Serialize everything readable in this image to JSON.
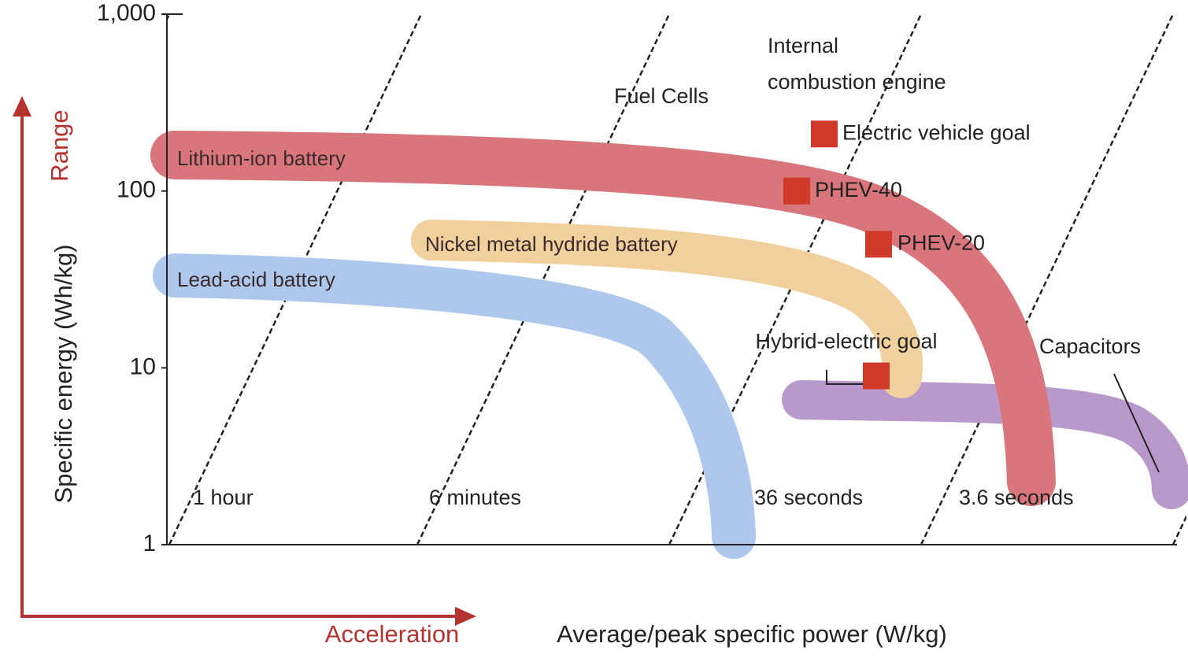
{
  "chart_data": {
    "type": "ragone",
    "ylabel": "Specific energy (Wh/kg)",
    "xlabel": "Average/peak specific power (W/kg)",
    "range_label": "Range",
    "acceleration_label": "Acceleration",
    "log_y": true,
    "ylim": [
      1,
      1000
    ],
    "yticks": [
      1,
      10,
      100,
      {
        "value": 1000,
        "label": "1,000"
      }
    ],
    "series": [
      {
        "name": "Lead-acid battery",
        "color": "#adc8ec"
      },
      {
        "name": "Capacitors",
        "color": "#b999cc"
      },
      {
        "name": "Lithium-ion battery",
        "color": "#d9767c"
      },
      {
        "name": "Nickel metal hydride battery",
        "color": "#f2d09e"
      }
    ],
    "markers": [
      {
        "name": "Electric vehicle goal",
        "value": 210,
        "color": "#d03a2a"
      },
      {
        "name": "PHEV-40",
        "value": 100,
        "color": "#d03a2a"
      },
      {
        "name": "PHEV-20",
        "value": 50,
        "color": "#d03a2a"
      },
      {
        "name": "Hybrid-electric goal",
        "value": 9,
        "color": "#d03a2a"
      }
    ],
    "annotations": [
      "Fuel Cells",
      "Internal",
      "combustion engine"
    ],
    "time_lines": [
      "1 hour",
      "6 minutes",
      "36 seconds",
      "3.6 seconds"
    ]
  }
}
